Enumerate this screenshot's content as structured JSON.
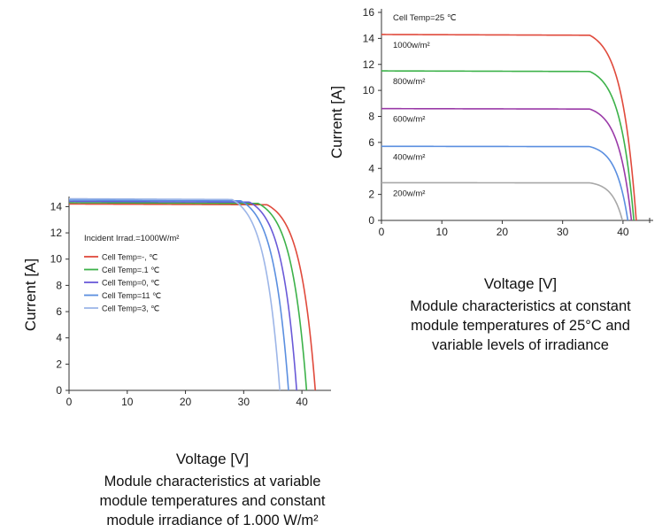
{
  "chart_data": [
    {
      "type": "line",
      "xlabel": "Voltage [V]",
      "ylabel": "Current [A]",
      "caption": [
        "Module characteristics at variable",
        "module temperatures and constant",
        "module irradiance of 1.000 W/m²"
      ],
      "annotation": "Incident Irrad.=1000W/m²",
      "xlim": [
        0,
        45
      ],
      "ylim": [
        0,
        14.5
      ],
      "xticks": [
        "0",
        "10",
        "20",
        "30",
        "40"
      ],
      "yticks": [
        "0",
        "2",
        "4",
        "6",
        "8",
        "10",
        "12",
        "14"
      ],
      "legend_position": "center-left",
      "series": [
        {
          "name": "Cell Temp=-, ℃",
          "color": "#e04a3c",
          "isc": 14.2,
          "voc": 42.3,
          "knee": 34.0
        },
        {
          "name": "Cell Temp=.1 ℃",
          "color": "#3db24a",
          "isc": 14.3,
          "voc": 40.8,
          "knee": 32.5
        },
        {
          "name": "Cell Temp=0, ℃",
          "color": "#6a5ad8",
          "isc": 14.4,
          "voc": 39.1,
          "knee": 31.0
        },
        {
          "name": "Cell Temp=11 ℃",
          "color": "#5b8fe0",
          "isc": 14.5,
          "voc": 37.7,
          "knee": 29.5
        },
        {
          "name": "Cell Temp=3, ℃",
          "color": "#9db6e8",
          "isc": 14.6,
          "voc": 36.2,
          "knee": 28.0
        }
      ]
    },
    {
      "type": "line",
      "xlabel": "Voltage [V]",
      "ylabel": "Current [A]",
      "caption": [
        "Module characteristics at constant",
        "module temperatures of 25°C and",
        "variable levels of irradiance"
      ],
      "annotation": "Cell Temp=25 ℃",
      "xlim": [
        0,
        45
      ],
      "ylim": [
        0,
        16
      ],
      "xticks": [
        "0",
        "10",
        "20",
        "30",
        "40"
      ],
      "yticks": [
        "0",
        "2",
        "4",
        "6",
        "8",
        "10",
        "12",
        "14",
        "16"
      ],
      "series": [
        {
          "name": "1000w/m²",
          "color": "#e04a3c",
          "isc": 14.3,
          "voc": 42.2,
          "knee": 34.5
        },
        {
          "name": "800w/m²",
          "color": "#3db24a",
          "isc": 11.5,
          "voc": 41.8,
          "knee": 34.5
        },
        {
          "name": "600w/m²",
          "color": "#9a3aa8",
          "isc": 8.6,
          "voc": 41.4,
          "knee": 34.5
        },
        {
          "name": "400w/m²",
          "color": "#5b8fe0",
          "isc": 5.7,
          "voc": 40.8,
          "knee": 34.5
        },
        {
          "name": "200w/m²",
          "color": "#a8a8a8",
          "isc": 2.9,
          "voc": 39.9,
          "knee": 34.5
        }
      ]
    }
  ]
}
